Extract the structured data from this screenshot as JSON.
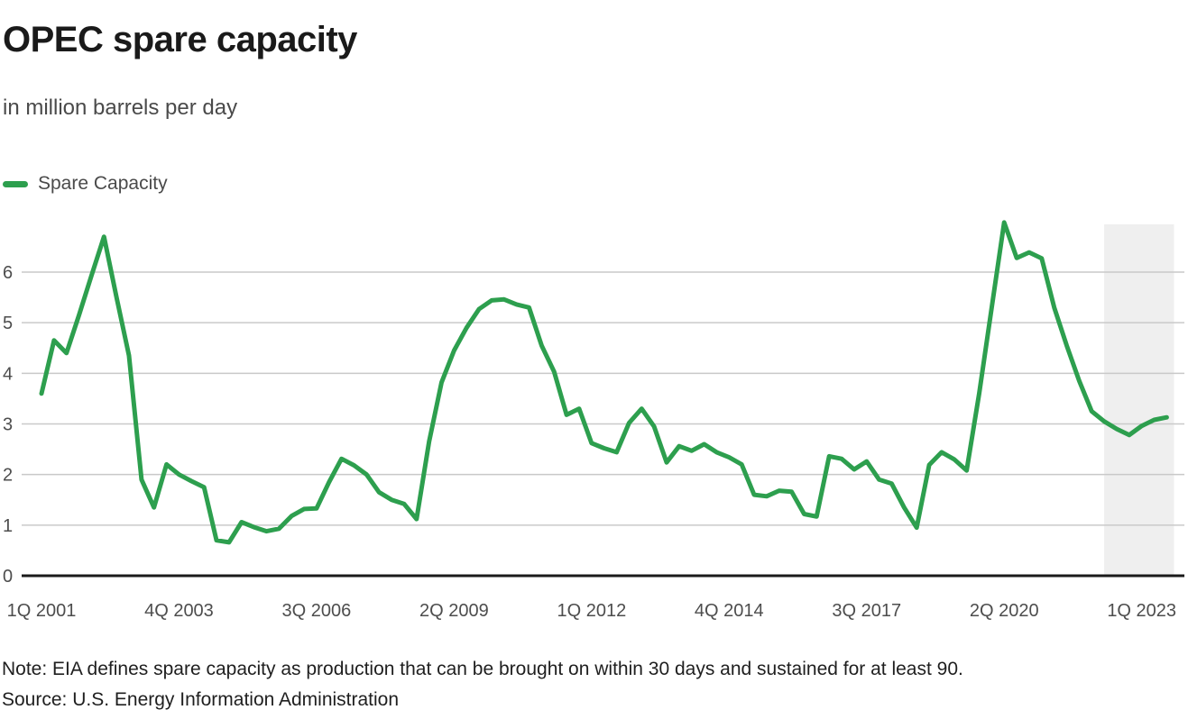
{
  "header": {
    "title": "OPEC spare capacity",
    "subtitle": "in million barrels per day"
  },
  "legend": {
    "label": "Spare Capacity"
  },
  "footer": {
    "note": "Note: EIA defines spare capacity as production that can be brought on within 30 days and sustained for at least 90.",
    "source": "Source: U.S. Energy Information Administration"
  },
  "colors": {
    "line_green": "#2d9f4e",
    "gridline": "#c9c9c9",
    "axis": "#1a1a1a",
    "tick_label": "#4d4d4d",
    "forecast_band": "#efefef",
    "background": "#ffffff"
  },
  "chart_data": {
    "type": "line",
    "title": "OPEC spare capacity",
    "subtitle": "in million barrels per day",
    "ylabel": "million barrels per day",
    "x_unit": "quarter",
    "x_start": "1Q 2001",
    "x_end": "3Q 2023",
    "x_tick_labels": [
      "1Q 2001",
      "4Q 2003",
      "3Q 2006",
      "2Q 2009",
      "1Q 2012",
      "4Q 2014",
      "3Q 2017",
      "2Q 2020",
      "1Q 2023"
    ],
    "x_tick_indices": [
      0,
      11,
      22,
      33,
      44,
      55,
      66,
      77,
      88
    ],
    "y_ticks": [
      0,
      1,
      2,
      3,
      4,
      5,
      6
    ],
    "ylim": [
      0,
      7.0
    ],
    "grid": "horizontal",
    "legend_position": "top-left",
    "forecast_band": {
      "start_index": 85,
      "end": "right-edge"
    },
    "series": [
      {
        "name": "Spare Capacity",
        "color": "#2d9f4e",
        "values": [
          3.6,
          4.65,
          4.4,
          5.15,
          5.93,
          6.7,
          5.5,
          4.35,
          1.9,
          1.35,
          2.2,
          2.0,
          1.87,
          1.75,
          0.7,
          0.66,
          1.06,
          0.96,
          0.88,
          0.93,
          1.18,
          1.32,
          1.33,
          1.85,
          2.31,
          2.18,
          2.0,
          1.65,
          1.5,
          1.42,
          1.12,
          2.65,
          3.82,
          4.45,
          4.9,
          5.27,
          5.44,
          5.46,
          5.36,
          5.3,
          4.55,
          4.03,
          3.18,
          3.3,
          2.62,
          2.52,
          2.44,
          3.02,
          3.3,
          2.95,
          2.24,
          2.56,
          2.47,
          2.6,
          2.44,
          2.34,
          2.2,
          1.6,
          1.57,
          1.68,
          1.66,
          1.22,
          1.17,
          2.36,
          2.31,
          2.1,
          2.26,
          1.9,
          1.82,
          1.35,
          0.95,
          2.19,
          2.44,
          2.3,
          2.08,
          3.6,
          5.3,
          6.98,
          6.28,
          6.39,
          6.27,
          5.3,
          4.55,
          3.85,
          3.25,
          3.05,
          2.9,
          2.78,
          2.96,
          3.08,
          3.13
        ]
      }
    ]
  }
}
